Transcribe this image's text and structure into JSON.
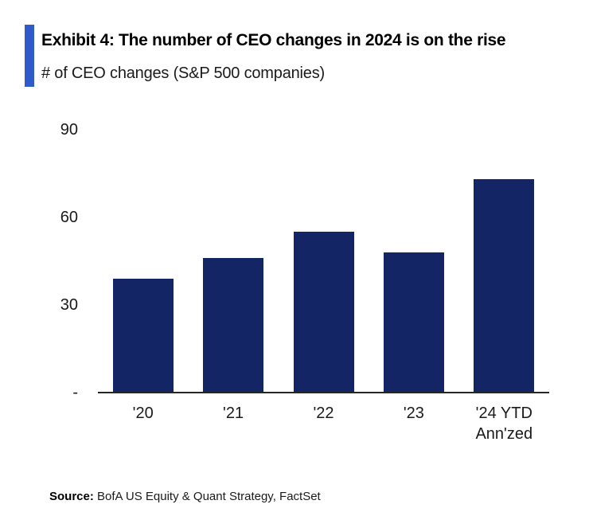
{
  "header": {
    "title": "Exhibit 4: The number of CEO changes in 2024 is on the rise",
    "subtitle": "# of CEO changes (S&P 500 companies)"
  },
  "chart_data": {
    "type": "bar",
    "title": "Exhibit 4: The number of CEO changes in 2024 is on the rise",
    "subtitle": "# of CEO changes (S&P 500 companies)",
    "categories": [
      "'20",
      "'21",
      "'22",
      "'23",
      "'24 YTD\nAnn'zed"
    ],
    "values": [
      39,
      46,
      55,
      48,
      73
    ],
    "xlabel": "",
    "ylabel": "# of CEO changes",
    "ylim": [
      0,
      90
    ],
    "yticks": [
      {
        "value": 0,
        "label": "-"
      },
      {
        "value": 30,
        "label": "30"
      },
      {
        "value": 60,
        "label": "60"
      },
      {
        "value": 90,
        "label": "90"
      }
    ],
    "grid": false,
    "legend": "none",
    "bar_color": "#132565"
  },
  "colors": {
    "accent_bar": "#2E5BC9",
    "bar": "#132565",
    "axis": "#262626"
  },
  "source": {
    "label": "Source:",
    "text": " BofA US Equity & Quant Strategy, FactSet"
  }
}
